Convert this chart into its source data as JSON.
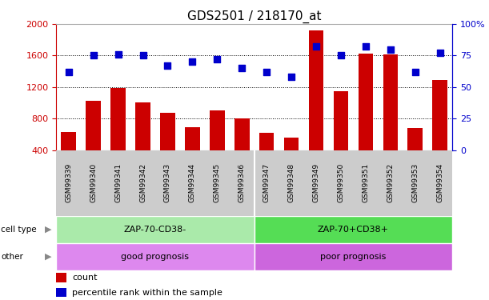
{
  "title": "GDS2501 / 218170_at",
  "samples": [
    "GSM99339",
    "GSM99340",
    "GSM99341",
    "GSM99342",
    "GSM99343",
    "GSM99344",
    "GSM99345",
    "GSM99346",
    "GSM99347",
    "GSM99348",
    "GSM99349",
    "GSM99350",
    "GSM99351",
    "GSM99352",
    "GSM99353",
    "GSM99354"
  ],
  "counts": [
    630,
    1020,
    1190,
    1000,
    870,
    690,
    900,
    800,
    620,
    560,
    1920,
    1150,
    1620,
    1610,
    680,
    1290
  ],
  "percentile_ranks": [
    62,
    75,
    76,
    75,
    67,
    70,
    72,
    65,
    62,
    58,
    82,
    75,
    82,
    80,
    62,
    77
  ],
  "bar_color": "#cc0000",
  "dot_color": "#0000cc",
  "ylim_left": [
    400,
    2000
  ],
  "ylim_right": [
    0,
    100
  ],
  "yticks_left": [
    400,
    800,
    1200,
    1600,
    2000
  ],
  "yticks_right": [
    0,
    25,
    50,
    75,
    100
  ],
  "grid_values": [
    800,
    1200,
    1600
  ],
  "cell_type_labels": [
    "ZAP-70-CD38-",
    "ZAP-70+CD38+"
  ],
  "cell_type_colors": [
    "#aaeaaa",
    "#55dd55"
  ],
  "other_labels": [
    "good prognosis",
    "poor prognosis"
  ],
  "other_colors": [
    "#dd88ee",
    "#cc66dd"
  ],
  "group_split": 8,
  "legend_items": [
    "count",
    "percentile rank within the sample"
  ],
  "bar_color_label": "#cc0000",
  "dot_color_label": "#0000cc",
  "background_label": "#cccccc",
  "title_fontsize": 11,
  "tick_fontsize": 8,
  "label_fontsize": 8
}
